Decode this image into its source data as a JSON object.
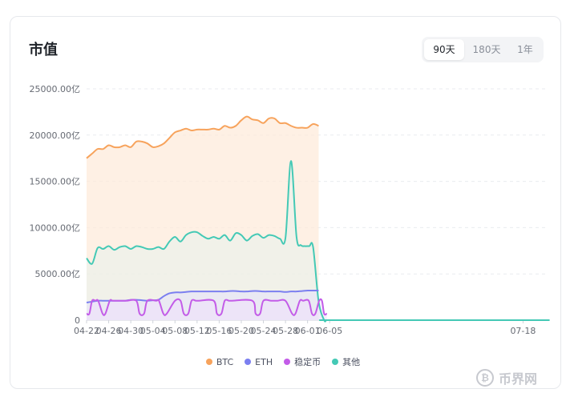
{
  "card": {
    "title": "市值",
    "range_options": [
      {
        "label": "90天",
        "active": true
      },
      {
        "label": "180天",
        "active": false
      },
      {
        "label": "1年",
        "active": false
      }
    ]
  },
  "watermark": {
    "glyph": "₿",
    "text": "币界网"
  },
  "chart_data": {
    "type": "area",
    "title": "",
    "xlabel": "",
    "ylabel": "",
    "ylim": [
      0,
      25000
    ],
    "y_ticks": [
      "0",
      "5000.00亿",
      "10000.00亿",
      "15000.00亿",
      "20000.00亿",
      "25000.00亿"
    ],
    "y_tick_values": [
      0,
      5000,
      10000,
      15000,
      20000,
      25000
    ],
    "x_range": [
      0,
      83
    ],
    "x_ticks": [
      {
        "label": "04-22",
        "x": 0
      },
      {
        "label": "04-26",
        "x": 4
      },
      {
        "label": "04-30",
        "x": 8
      },
      {
        "label": "05-04",
        "x": 12
      },
      {
        "label": "05-08",
        "x": 16
      },
      {
        "label": "05-12",
        "x": 20
      },
      {
        "label": "05-16",
        "x": 24
      },
      {
        "label": "05-20",
        "x": 28
      },
      {
        "label": "05-24",
        "x": 32
      },
      {
        "label": "05-28",
        "x": 36
      },
      {
        "label": "06-01",
        "x": 40
      },
      {
        "label": "06-05",
        "x": 44
      },
      {
        "label": "07-18",
        "x": 79
      }
    ],
    "grid": true,
    "legend_position": "bottom",
    "series": [
      {
        "name": "BTC",
        "color": "#f7a35c",
        "fill": "#fde9d8",
        "x": [
          0,
          1,
          2,
          3,
          4,
          5,
          6,
          7,
          8,
          9,
          10,
          11,
          12,
          13,
          14,
          15,
          16,
          17,
          18,
          19,
          20,
          21,
          22,
          23,
          24,
          25,
          26,
          27,
          28,
          29,
          30,
          31,
          32,
          33,
          34,
          35,
          36,
          37,
          38,
          39,
          40,
          41,
          42,
          43,
          44,
          45,
          46,
          80,
          83
        ],
        "values": [
          17500,
          18000,
          18500,
          18500,
          18900,
          18700,
          18700,
          18900,
          18700,
          19300,
          19300,
          19100,
          18700,
          18800,
          19100,
          19700,
          20300,
          20500,
          20700,
          20500,
          20600,
          20600,
          20600,
          20700,
          20600,
          21000,
          20800,
          21000,
          21600,
          22000,
          21700,
          21600,
          21300,
          21800,
          21800,
          21300,
          21300,
          21000,
          20800,
          20800,
          20800,
          21200,
          21000,
          null,
          null,
          null,
          null,
          null,
          null
        ]
      },
      {
        "name": "ETH",
        "color": "#7b7ff0",
        "fill": "#e4e2fb",
        "x": [
          0,
          1,
          2,
          3,
          4,
          5,
          6,
          7,
          8,
          9,
          10,
          11,
          12,
          13,
          14,
          15,
          16,
          17,
          18,
          19,
          20,
          21,
          22,
          23,
          24,
          25,
          26,
          27,
          28,
          29,
          30,
          31,
          32,
          33,
          34,
          35,
          36,
          37,
          38,
          39,
          40,
          41,
          42,
          43,
          44,
          45,
          46,
          80,
          83
        ],
        "values": [
          1900,
          2000,
          2100,
          2100,
          2100,
          2100,
          2100,
          2100,
          2200,
          2200,
          2150,
          2100,
          2150,
          2200,
          2600,
          2900,
          3000,
          3000,
          3050,
          3100,
          3100,
          3100,
          3100,
          3100,
          3100,
          3100,
          3150,
          3150,
          3100,
          3100,
          3150,
          3150,
          3100,
          3100,
          3100,
          3100,
          3050,
          3100,
          3100,
          3150,
          3200,
          3200,
          3200,
          null,
          null,
          null,
          null,
          null,
          null
        ]
      },
      {
        "name": "稳定币",
        "color": "#c35ce8",
        "fill": "#efe0fb",
        "x": [
          0,
          0.5,
          1,
          1.6,
          2.1,
          2.9,
          3.4,
          4.2,
          4.7,
          5.4,
          6,
          6.8,
          7.3,
          9,
          9.6,
          10.4,
          11,
          12.6,
          13.1,
          13.9,
          14.5,
          16,
          17,
          17.6,
          18.4,
          19,
          19.8,
          20.3,
          23,
          23.6,
          24.4,
          25,
          25.8,
          26.3,
          30,
          30.6,
          31.4,
          32,
          33.4,
          34,
          34.6,
          36,
          37.2,
          37.8,
          38.6,
          39.2,
          40.2,
          40.8,
          41.4,
          42.1,
          42.6,
          43,
          43.5
        ],
        "values": [
          700,
          700,
          2100,
          2100,
          2100,
          700,
          700,
          2100,
          2100,
          2100,
          2100,
          2100,
          2100,
          2100,
          700,
          700,
          2100,
          2100,
          2100,
          700,
          700,
          2100,
          2100,
          700,
          700,
          2100,
          2100,
          2100,
          2100,
          700,
          700,
          2100,
          2100,
          2100,
          2100,
          700,
          700,
          2100,
          2100,
          2100,
          2100,
          2100,
          700,
          700,
          2100,
          2100,
          2100,
          700,
          700,
          2100,
          2100,
          700,
          700
        ]
      },
      {
        "name": "其他",
        "color": "#44c9b5",
        "fill": "#e6f3ec",
        "x": [
          0,
          1,
          2,
          3,
          4,
          5,
          6,
          7,
          8,
          9,
          10,
          11,
          12,
          13,
          14,
          15,
          16,
          17,
          18,
          19,
          20,
          21,
          22,
          23,
          24,
          25,
          26,
          27,
          28,
          29,
          30,
          31,
          32,
          33,
          34,
          35,
          36,
          37,
          38,
          38.8,
          39.5,
          40.3,
          41,
          42,
          43,
          43.4,
          43.9,
          44.3,
          45,
          80,
          83
        ],
        "values": [
          6700,
          6100,
          7800,
          7700,
          8000,
          7600,
          7900,
          8000,
          7700,
          8000,
          7900,
          7700,
          7700,
          7900,
          7700,
          8500,
          9000,
          8500,
          9200,
          9500,
          9500,
          9100,
          8800,
          9000,
          8800,
          9200,
          8600,
          9400,
          9200,
          8600,
          9100,
          9300,
          8900,
          9200,
          9100,
          8800,
          8900,
          17200,
          9000,
          8100,
          8000,
          8000,
          7900,
          2000,
          0,
          0,
          0,
          0,
          0,
          0,
          0
        ]
      }
    ]
  }
}
